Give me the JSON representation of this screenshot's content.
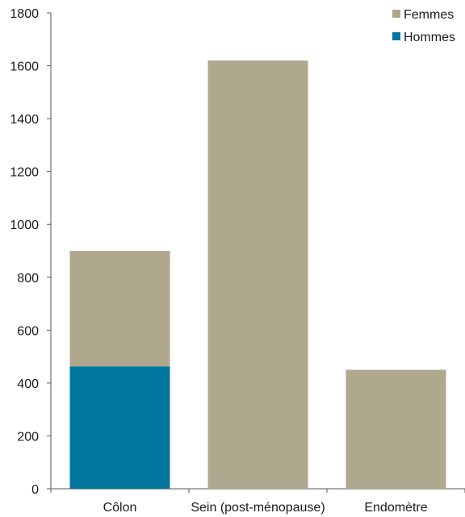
{
  "chart_data": {
    "type": "bar",
    "stacked": true,
    "categories": [
      "Côlon",
      "Sein (post-ménopause)",
      "Endomètre"
    ],
    "series": [
      {
        "name": "Hommes",
        "color": "#00769e",
        "values": [
          463,
          0,
          0
        ]
      },
      {
        "name": "Femmes",
        "color": "#b0a78f",
        "values": [
          437,
          1620,
          450
        ]
      }
    ],
    "ylim": [
      0,
      1800
    ],
    "yticks": [
      0,
      200,
      400,
      600,
      800,
      1000,
      1200,
      1400,
      1600,
      1800
    ],
    "grid": false,
    "legend_placement": "top-right",
    "legend_order": [
      "Femmes",
      "Hommes"
    ]
  }
}
